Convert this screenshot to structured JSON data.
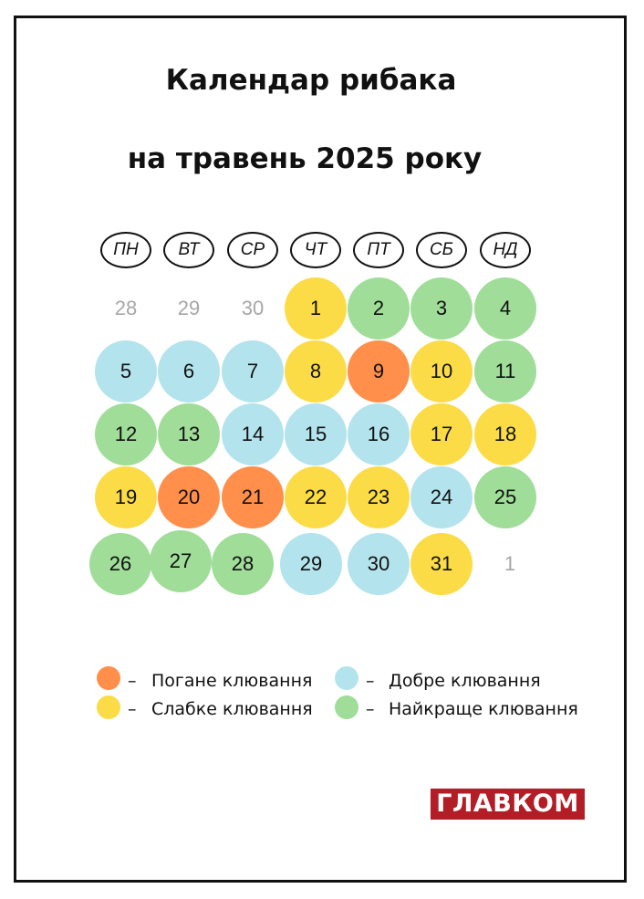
{
  "title_line1": "Календар рибака",
  "title_line2": "на травень 2025 року",
  "colors": {
    "bad": "#ff8f4a",
    "weak": "#fbdc47",
    "good": "#b3e3ec",
    "best": "#9fdd98",
    "other_month_text": "#a6a6a6"
  },
  "weekdays": [
    "ПН",
    "ВТ",
    "СР",
    "ЧТ",
    "ПТ",
    "СБ",
    "НД"
  ],
  "days": [
    {
      "label": "28",
      "status": "other"
    },
    {
      "label": "29",
      "status": "other"
    },
    {
      "label": "30",
      "status": "other"
    },
    {
      "label": "1",
      "status": "weak"
    },
    {
      "label": "2",
      "status": "best"
    },
    {
      "label": "3",
      "status": "best"
    },
    {
      "label": "4",
      "status": "best"
    },
    {
      "label": "5",
      "status": "good"
    },
    {
      "label": "6",
      "status": "good"
    },
    {
      "label": "7",
      "status": "good"
    },
    {
      "label": "8",
      "status": "weak"
    },
    {
      "label": "9",
      "status": "bad"
    },
    {
      "label": "10",
      "status": "weak"
    },
    {
      "label": "11",
      "status": "best"
    },
    {
      "label": "12",
      "status": "best"
    },
    {
      "label": "13",
      "status": "best"
    },
    {
      "label": "14",
      "status": "good"
    },
    {
      "label": "15",
      "status": "good"
    },
    {
      "label": "16",
      "status": "good"
    },
    {
      "label": "17",
      "status": "weak"
    },
    {
      "label": "18",
      "status": "weak"
    },
    {
      "label": "19",
      "status": "weak"
    },
    {
      "label": "20",
      "status": "bad"
    },
    {
      "label": "21",
      "status": "bad"
    },
    {
      "label": "22",
      "status": "weak"
    },
    {
      "label": "23",
      "status": "weak"
    },
    {
      "label": "24",
      "status": "good"
    },
    {
      "label": "25",
      "status": "best"
    },
    {
      "label": "26",
      "status": "best"
    },
    {
      "label": "27",
      "status": "best"
    },
    {
      "label": "28",
      "status": "best"
    },
    {
      "label": "29",
      "status": "good"
    },
    {
      "label": "30",
      "status": "good"
    },
    {
      "label": "31",
      "status": "weak"
    },
    {
      "label": "1",
      "status": "other"
    }
  ],
  "legend": {
    "bad": "Погане клювання",
    "weak": "Слабке клювання",
    "good": "Добре клювання",
    "best": "Найкраще клювання",
    "dash": "–"
  },
  "logo": {
    "text": "ГЛАВКОМ"
  }
}
